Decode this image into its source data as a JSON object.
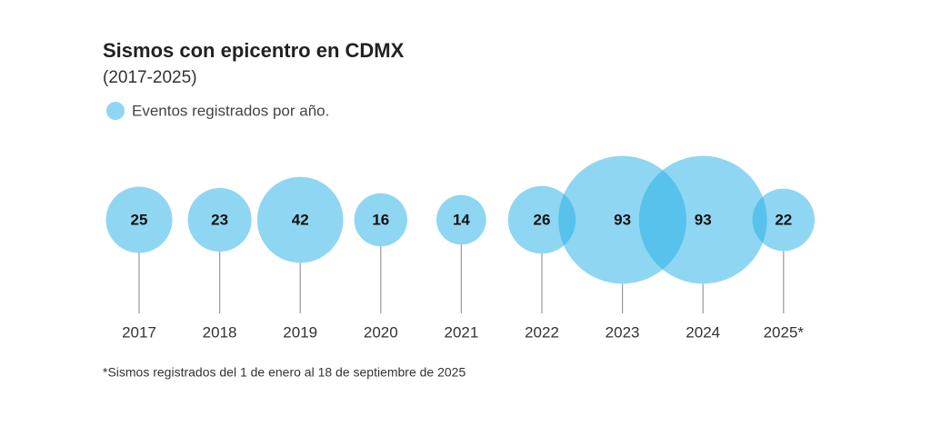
{
  "chart_data": {
    "type": "bubble",
    "title": "Sismos con epicentro en CDMX",
    "subtitle": "(2017-2025)",
    "categories": [
      "2017",
      "2018",
      "2019",
      "2020",
      "2021",
      "2022",
      "2023",
      "2024",
      "2025*"
    ],
    "series": [
      {
        "name": "Eventos registrados por año.",
        "color": "#20aee6",
        "values": [
          25,
          23,
          42,
          16,
          14,
          26,
          93,
          93,
          22
        ]
      }
    ],
    "footnote": "*Sismos registrados del 1 de enero al 18 de septiembre de 2025"
  }
}
